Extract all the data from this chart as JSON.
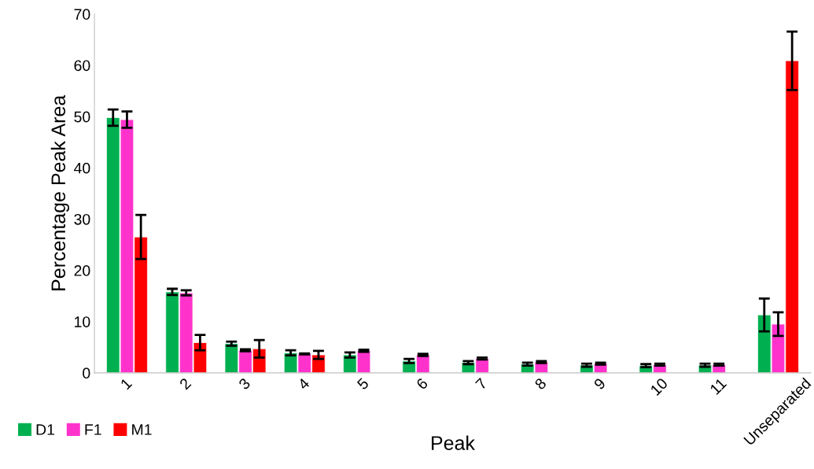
{
  "chart_data": {
    "type": "bar",
    "xlabel": "Peak",
    "ylabel": "Percentage Peak Area",
    "categories": [
      "1",
      "2",
      "3",
      "4",
      "5",
      "6",
      "7",
      "8",
      "9",
      "10",
      "11",
      "Unseparated"
    ],
    "ylim": [
      0,
      70
    ],
    "yticks": [
      0,
      10,
      20,
      30,
      40,
      50,
      60,
      70
    ],
    "grid": false,
    "legend": "bottom left",
    "series": [
      {
        "name": "D1",
        "color": "#00b050",
        "values": [
          49.8,
          15.8,
          5.7,
          3.9,
          3.5,
          2.3,
          2.0,
          1.7,
          1.5,
          1.4,
          1.5,
          11.3
        ],
        "errors": [
          1.6,
          0.6,
          0.4,
          0.5,
          0.5,
          0.4,
          0.3,
          0.3,
          0.3,
          0.3,
          0.3,
          3.2
        ]
      },
      {
        "name": "F1",
        "color": "#ff33cc",
        "values": [
          49.4,
          15.6,
          4.4,
          3.7,
          4.3,
          3.5,
          2.8,
          2.1,
          1.8,
          1.6,
          1.6,
          9.5
        ],
        "errors": [
          1.6,
          0.5,
          0.2,
          0.1,
          0.2,
          0.2,
          0.2,
          0.2,
          0.2,
          0.2,
          0.2,
          2.3
        ]
      },
      {
        "name": "M1",
        "color": "#ff0000",
        "values": [
          26.5,
          5.9,
          4.7,
          3.5,
          null,
          null,
          null,
          null,
          null,
          null,
          null,
          60.9
        ],
        "errors": [
          4.3,
          1.5,
          1.7,
          0.8,
          null,
          null,
          null,
          null,
          null,
          null,
          null,
          5.7
        ]
      }
    ]
  }
}
